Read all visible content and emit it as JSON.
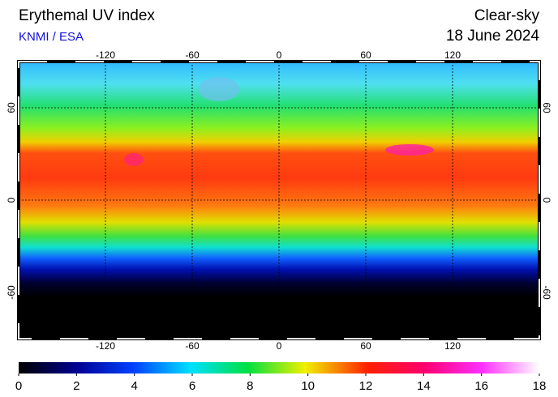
{
  "header": {
    "title": "Erythemal UV index",
    "source": "KNMI / ESA",
    "condition": "Clear-sky",
    "date": "18 June 2024"
  },
  "map": {
    "lonlim": [
      -180,
      180
    ],
    "latlim": [
      -90,
      90
    ],
    "lon_ticks": [
      -120,
      -60,
      0,
      60,
      120
    ],
    "lat_ticks": [
      60,
      0,
      -60
    ]
  },
  "colorbar": {
    "lim": [
      0,
      18
    ],
    "ticks": [
      0,
      2,
      4,
      6,
      8,
      10,
      12,
      14,
      16,
      18
    ]
  }
}
